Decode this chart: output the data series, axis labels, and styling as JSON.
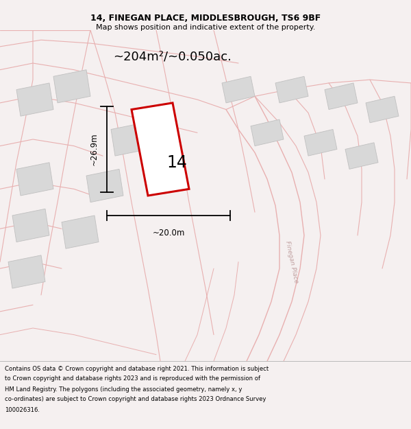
{
  "title_line1": "14, FINEGAN PLACE, MIDDLESBROUGH, TS6 9BF",
  "title_line2": "Map shows position and indicative extent of the property.",
  "area_label": "~204m²/~0.050ac.",
  "number_label": "14",
  "dim_height": "~26.9m",
  "dim_width": "~20.0m",
  "road_label": "Finegan Place",
  "footer_text1": "Contains OS data © Crown copyright and database right 2021. This information is subject",
  "footer_text2": "to Crown copyright and database rights 2023 and is reproduced with the permission of",
  "footer_text3": "HM Land Registry. The polygons (including the associated geometry, namely x, y",
  "footer_text4": "co-ordinates) are subject to Crown copyright and database rights 2023 Ordnance Survey",
  "footer_text5": "100026316.",
  "bg_color": "#f5f0f0",
  "map_bg": "#f8f5f5",
  "plot_color_red": "#cc0000",
  "building_fill": "#d8d8d8",
  "building_edge": "#c0c0c0",
  "line_color_light": "#e8b0b0",
  "text_color": "#000000",
  "road_text_color": "#c0a0a0"
}
